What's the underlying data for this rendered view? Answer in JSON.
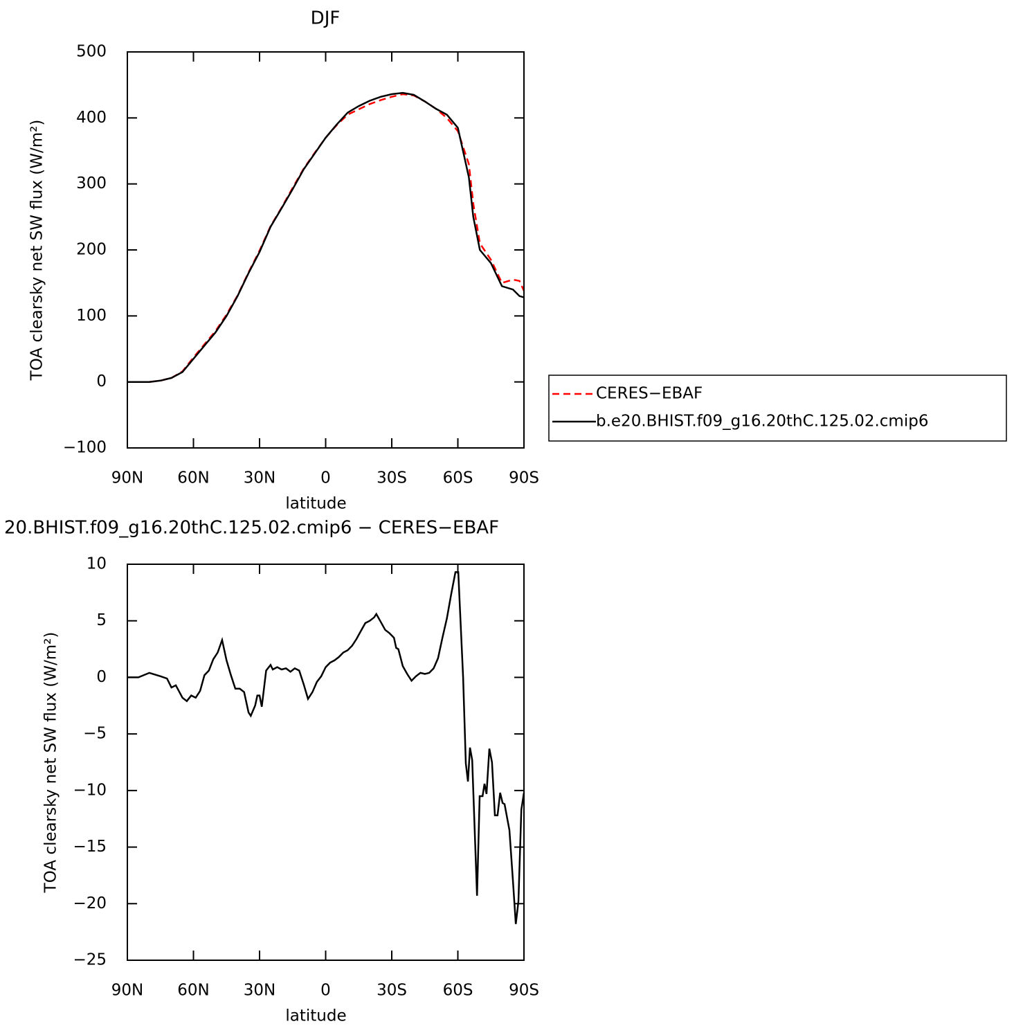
{
  "chart_data": [
    {
      "type": "line",
      "title": "DJF",
      "x_label": "latitude",
      "y_label": "TOA clearsky net SW flux (W/m²)",
      "xlim": [
        90,
        -90
      ],
      "ylim": [
        -100,
        500
      ],
      "xticks": [
        {
          "value": 90,
          "label": "90N"
        },
        {
          "value": 60,
          "label": "60N"
        },
        {
          "value": 30,
          "label": "30N"
        },
        0,
        {
          "value": -30,
          "label": "30S"
        },
        {
          "value": -60,
          "label": "60S"
        },
        {
          "value": -90,
          "label": "90S"
        }
      ],
      "yticks": [
        {
          "value": -100,
          "label": "−100"
        },
        0,
        100,
        200,
        300,
        400,
        500
      ],
      "legend": "right",
      "x": [
        90,
        85,
        80,
        75,
        70,
        65,
        60,
        55,
        50,
        45,
        40,
        35,
        30,
        25,
        20,
        15,
        10,
        5,
        0,
        -5,
        -10,
        -15,
        -20,
        -25,
        -30,
        -35,
        -40,
        -45,
        -50,
        -55,
        -60,
        -65,
        -67,
        -70,
        -75,
        -80,
        -85,
        -88,
        -90
      ],
      "series": [
        {
          "name": "CERES−EBAF",
          "color": "#ff0000",
          "style": "dashed",
          "values": [
            0,
            0,
            0,
            2,
            6,
            16,
            37,
            57,
            77,
            102,
            131,
            166,
            199,
            236,
            264,
            294,
            323,
            347,
            370,
            389,
            405,
            413,
            421,
            427,
            432,
            436,
            434,
            425,
            414,
            400,
            380,
            330,
            270,
            210,
            185,
            150,
            155,
            153,
            138
          ]
        },
        {
          "name": "b.e20.BHIST.f09_g16.20thC.125.02.cmip6",
          "color": "#000000",
          "style": "solid",
          "values": [
            0,
            0,
            0,
            2,
            6,
            15,
            35,
            55,
            75,
            100,
            130,
            165,
            197,
            235,
            263,
            292,
            322,
            346,
            370,
            390,
            408,
            418,
            426,
            432,
            436,
            438,
            435,
            425,
            414,
            405,
            385,
            310,
            250,
            200,
            180,
            145,
            140,
            130,
            128
          ]
        }
      ]
    },
    {
      "type": "line",
      "title": "20.BHIST.f09_g16.20thC.125.02.cmip6 − CERES−EBAF",
      "x_label": "latitude",
      "y_label": "TOA clearsky net SW flux (W/m²)",
      "xlim": [
        90,
        -90
      ],
      "ylim": [
        -25,
        10
      ],
      "xticks": [
        {
          "value": 90,
          "label": "90N"
        },
        {
          "value": 60,
          "label": "60N"
        },
        {
          "value": 30,
          "label": "30N"
        },
        0,
        {
          "value": -30,
          "label": "30S"
        },
        {
          "value": -60,
          "label": "60S"
        },
        {
          "value": -90,
          "label": "90S"
        }
      ],
      "yticks": [
        {
          "value": -25,
          "label": "−25"
        },
        {
          "value": -20,
          "label": "−20"
        },
        {
          "value": -15,
          "label": "−15"
        },
        {
          "value": -10,
          "label": "−10"
        },
        {
          "value": -5,
          "label": "−5"
        },
        0,
        5,
        10
      ],
      "color": "#000000",
      "x": [
        90,
        85,
        80,
        75,
        72,
        70,
        68,
        65,
        63,
        61,
        59,
        57,
        55,
        53,
        51,
        49,
        47,
        45,
        43,
        41,
        39,
        37,
        35,
        34,
        32,
        31,
        30,
        29,
        27,
        25,
        24,
        22,
        20,
        18,
        16,
        14,
        12,
        10,
        8,
        6,
        4,
        2,
        0,
        -2,
        -4,
        -6,
        -8,
        -10,
        -12,
        -14,
        -16,
        -18,
        -20,
        -22,
        -23,
        -25,
        -27,
        -29,
        -31,
        -32,
        -33,
        -35,
        -37,
        -39,
        -41,
        -43,
        -45,
        -47,
        -49,
        -51,
        -53,
        -55,
        -57,
        -58.9,
        -60.2,
        -62.4,
        -63.6,
        -64.6,
        -65.5,
        -66.5,
        -68.7,
        -69.9,
        -71.2,
        -72.1,
        -73,
        -74.3,
        -75.5,
        -76.8,
        -78,
        -79.2,
        -80.3,
        -81.2,
        -83.4,
        -85,
        -86.3,
        -87.5,
        -88.8,
        -90
      ],
      "values": [
        0,
        0,
        0.4,
        0.1,
        -0.1,
        -0.9,
        -0.7,
        -1.8,
        -2.1,
        -1.6,
        -1.8,
        -1.2,
        0.2,
        0.6,
        1.6,
        2.2,
        3.3,
        1.5,
        0.2,
        -1,
        -1,
        -1.3,
        -3.1,
        -3.4,
        -2.5,
        -1.6,
        -1.6,
        -2.6,
        0.6,
        1.1,
        0.7,
        0.9,
        0.7,
        0.8,
        0.5,
        0.8,
        0.6,
        -0.6,
        -1.9,
        -1.3,
        -0.4,
        0.1,
        0.9,
        1.3,
        1.5,
        1.8,
        2.2,
        2.4,
        2.8,
        3.4,
        4.1,
        4.8,
        5,
        5.3,
        5.6,
        4.9,
        4.2,
        3.9,
        3.5,
        2.6,
        2.5,
        1,
        0.3,
        -0.3,
        0.1,
        0.4,
        0.3,
        0.4,
        0.8,
        1.7,
        3.5,
        5.2,
        7.4,
        9.3,
        9.3,
        0,
        -7.6,
        -9.2,
        -6.2,
        -7.3,
        -19.3,
        -10.5,
        -10.5,
        -9.4,
        -10.3,
        -6.3,
        -7.5,
        -12.2,
        -12.2,
        -10.2,
        -11.1,
        -11.2,
        -13.5,
        -18,
        -21.8,
        -19.8,
        -11.7,
        -10.2
      ]
    }
  ]
}
